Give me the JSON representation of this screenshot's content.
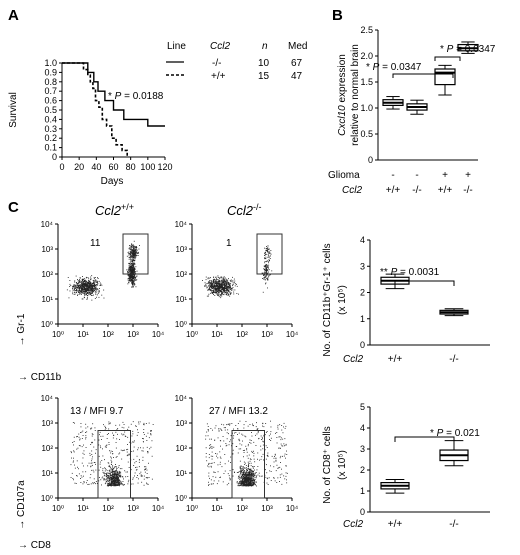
{
  "panels": {
    "a": {
      "letter": "A",
      "ylabel": "Survival",
      "xlabel": "Days",
      "pvalue_prefix": "* ",
      "pvalue_p": "P",
      "pvalue_rest": " = 0.0188",
      "legend": {
        "headers": [
          "Line",
          "Ccl2",
          "n",
          "Med"
        ],
        "rows": [
          {
            "genotype": "-/-",
            "n": "10",
            "med": "67"
          },
          {
            "genotype": "+/+",
            "n": "15",
            "med": "47"
          }
        ]
      }
    },
    "b": {
      "letter": "B",
      "ylabel_ital": "Cxcl10",
      "ylabel_rest": " expression",
      "ylabel2": "relative to normal brain",
      "row1_label": "Glioma",
      "row2_label": "Ccl2",
      "row1_values": [
        "-",
        "-",
        "+",
        "+"
      ],
      "row2_values": [
        "+/+",
        "-/-",
        "+/+",
        "-/-"
      ],
      "p_left_prefix": "* ",
      "p_left_p": "P",
      "p_left_rest": " = 0.0347",
      "p_right_prefix": "* ",
      "p_right_p": "P",
      "p_right_rest": " = 0.0347"
    },
    "c": {
      "letter": "C",
      "col1_title_base": "Ccl2",
      "col1_title_sup": "+/+",
      "col2_title_base": "Ccl2",
      "col2_title_sup": "-/-",
      "flow_top_y_axis": "Gr-1",
      "flow_top_x_axis": "CD11b",
      "flow_bottom_y_axis": "CD107a",
      "flow_bottom_x_axis": "CD8",
      "gate_top_left": "11",
      "gate_top_right": "1",
      "gate_bottom_left": "13 / MFI 9.7",
      "gate_bottom_right": "27 / MFI 13.2",
      "arrow": "→",
      "box_top_ylabel": "No. of CD11b⁺Gr-1⁺ cells",
      "box_top_unit": "(x 10⁵)",
      "box_top_p_prefix": "** ",
      "box_top_p_p": "P",
      "box_top_p_rest": " = 0.0031",
      "box_bottom_ylabel": "No. of CD8⁺ cells",
      "box_bottom_unit": "(x 10⁵)",
      "box_bottom_p_prefix": "* ",
      "box_bottom_p_p": "P",
      "box_bottom_p_rest": " = 0.021",
      "genotype_label": "Ccl2",
      "genotype_values": [
        "+/+",
        "-/-"
      ],
      "log_ticks": [
        "10⁰",
        "10¹",
        "10²",
        "10³",
        "10⁴"
      ]
    }
  },
  "chart_data": [
    {
      "type": "line",
      "panel": "A",
      "ylabel": "Survival",
      "xlabel": "Days",
      "xlim": [
        0,
        120
      ],
      "ylim": [
        0,
        1.0
      ],
      "x_ticks": [
        0,
        20,
        40,
        60,
        80,
        100,
        120
      ],
      "y_ticks": [
        0,
        0.1,
        0.2,
        0.3,
        0.4,
        0.5,
        0.6,
        0.7,
        0.8,
        0.9,
        1.0
      ],
      "y_tick_labels": [
        "0",
        "0.1",
        "0.2",
        "0.3",
        "0.4",
        "0.5",
        "0.6",
        "0.7",
        "0.8",
        "0.9",
        "1.0"
      ],
      "series": [
        {
          "name": "-/-",
          "style": "solid",
          "steps": [
            [
              0,
              1.0
            ],
            [
              30,
              1.0
            ],
            [
              30,
              0.9
            ],
            [
              37,
              0.9
            ],
            [
              37,
              0.8
            ],
            [
              42,
              0.8
            ],
            [
              42,
              0.7
            ],
            [
              50,
              0.7
            ],
            [
              50,
              0.6
            ],
            [
              60,
              0.6
            ],
            [
              60,
              0.5
            ],
            [
              72,
              0.5
            ],
            [
              72,
              0.4
            ],
            [
              100,
              0.4
            ],
            [
              100,
              0.33
            ],
            [
              120,
              0.33
            ]
          ]
        },
        {
          "name": "+/+",
          "style": "dashed",
          "steps": [
            [
              0,
              1.0
            ],
            [
              25,
              1.0
            ],
            [
              25,
              0.93
            ],
            [
              30,
              0.93
            ],
            [
              30,
              0.87
            ],
            [
              33,
              0.87
            ],
            [
              33,
              0.8
            ],
            [
              36,
              0.8
            ],
            [
              36,
              0.73
            ],
            [
              39,
              0.73
            ],
            [
              39,
              0.6
            ],
            [
              43,
              0.6
            ],
            [
              43,
              0.53
            ],
            [
              47,
              0.53
            ],
            [
              47,
              0.4
            ],
            [
              52,
              0.4
            ],
            [
              52,
              0.33
            ],
            [
              58,
              0.33
            ],
            [
              58,
              0.2
            ],
            [
              63,
              0.2
            ],
            [
              63,
              0.13
            ],
            [
              70,
              0.13
            ],
            [
              70,
              0.07
            ],
            [
              76,
              0.07
            ],
            [
              76,
              0
            ]
          ]
        }
      ]
    },
    {
      "type": "box",
      "panel": "B",
      "ylim": [
        0,
        2.5
      ],
      "y_ticks": [
        0,
        0.5,
        1.0,
        1.5,
        2.0,
        2.5
      ],
      "y_tick_labels": [
        "0",
        "0.5",
        "1.0",
        "1.5",
        "2.0",
        "2.5"
      ],
      "groups": [
        {
          "glioma": "-",
          "ccl2": "+/+",
          "min": 0.98,
          "q1": 1.05,
          "median": 1.1,
          "q3": 1.16,
          "max": 1.22
        },
        {
          "glioma": "-",
          "ccl2": "-/-",
          "min": 0.88,
          "q1": 0.96,
          "median": 1.02,
          "q3": 1.08,
          "max": 1.15
        },
        {
          "glioma": "+",
          "ccl2": "+/+",
          "min": 1.25,
          "q1": 1.45,
          "median": 1.68,
          "q3": 1.75,
          "max": 1.82
        },
        {
          "glioma": "+",
          "ccl2": "-/-",
          "min": 2.05,
          "q1": 2.1,
          "median": 2.15,
          "q3": 2.22,
          "max": 2.27
        }
      ]
    },
    {
      "type": "box",
      "panel": "C-top",
      "ylim": [
        0,
        4
      ],
      "y_ticks": [
        0,
        1,
        2,
        3,
        4
      ],
      "groups": [
        {
          "ccl2": "+/+",
          "min": 2.15,
          "q1": 2.32,
          "median": 2.45,
          "q3": 2.58,
          "max": 2.7
        },
        {
          "ccl2": "-/-",
          "min": 1.12,
          "q1": 1.18,
          "median": 1.25,
          "q3": 1.32,
          "max": 1.38
        }
      ]
    },
    {
      "type": "box",
      "panel": "C-bottom",
      "ylim": [
        0,
        5
      ],
      "y_ticks": [
        0,
        1,
        2,
        3,
        4,
        5
      ],
      "groups": [
        {
          "ccl2": "+/+",
          "min": 0.9,
          "q1": 1.1,
          "median": 1.25,
          "q3": 1.4,
          "max": 1.55
        },
        {
          "ccl2": "-/-",
          "min": 2.2,
          "q1": 2.45,
          "median": 2.7,
          "q3": 2.95,
          "max": 3.4
        }
      ]
    },
    {
      "type": "scatter",
      "panel": "C-flow",
      "xlim": [
        0,
        4
      ],
      "ylim": [
        0,
        4
      ],
      "x_scale": "log10",
      "y_scale": "log10",
      "plots": [
        {
          "id": "gr1-wt",
          "gate_x": [
            2.6,
            3.6
          ],
          "gate_y": [
            2.0,
            3.6
          ]
        },
        {
          "id": "gr1-ko",
          "gate_x": [
            2.6,
            3.6
          ],
          "gate_y": [
            2.0,
            3.6
          ]
        },
        {
          "id": "cd107-wt",
          "gate_x": [
            1.6,
            2.9
          ],
          "gate_y": [
            0,
            2.7
          ]
        },
        {
          "id": "cd107-ko",
          "gate_x": [
            1.6,
            2.9
          ],
          "gate_y": [
            0,
            2.7
          ]
        }
      ]
    }
  ]
}
